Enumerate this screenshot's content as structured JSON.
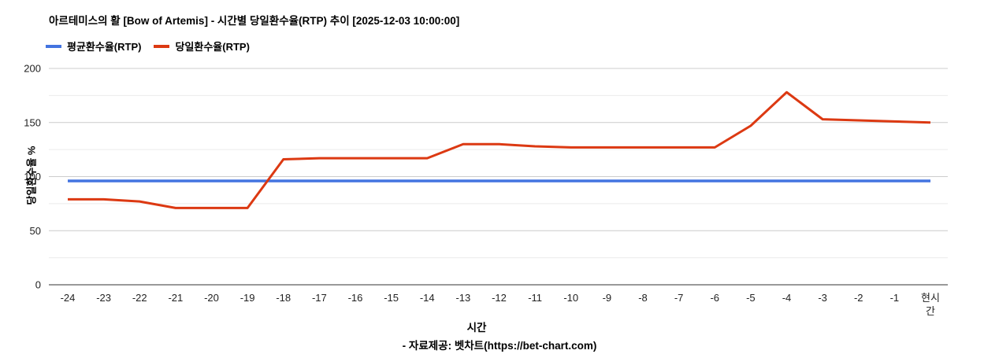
{
  "footer": {
    "source": "- 자료제공: 벳차트(https://bet-chart.com)"
  },
  "chart_data": {
    "type": "line",
    "title": "아르테미스의 활 [Bow of Artemis] - 시간별 당일환수율(RTP) 추이 [2025-12-03 10:00:00]",
    "x": [
      "-24",
      "-23",
      "-22",
      "-21",
      "-20",
      "-19",
      "-18",
      "-17",
      "-16",
      "-15",
      "-14",
      "-13",
      "-12",
      "-11",
      "-10",
      "-9",
      "-8",
      "-7",
      "-6",
      "-5",
      "-4",
      "-3",
      "-2",
      "-1",
      "현시간"
    ],
    "series": [
      {
        "name": "평균환수율(RTP)",
        "color": "#4374e0",
        "values": [
          96,
          96,
          96,
          96,
          96,
          96,
          96,
          96,
          96,
          96,
          96,
          96,
          96,
          96,
          96,
          96,
          96,
          96,
          96,
          96,
          96,
          96,
          96,
          96,
          96
        ]
      },
      {
        "name": "당일환수율(RTP)",
        "color": "#dc3912",
        "values": [
          79,
          79,
          77,
          71,
          71,
          71,
          116,
          117,
          117,
          117,
          117,
          130,
          130,
          128,
          127,
          127,
          127,
          127,
          127,
          147,
          178,
          153,
          152,
          151,
          150
        ]
      }
    ],
    "xlabel": "시간",
    "ylabel": "당일환수율 %",
    "ylim": [
      0,
      200
    ],
    "yticks": [
      0,
      50,
      100,
      150,
      200
    ],
    "minor_gridline_step": 25,
    "grid": true,
    "legend_position": "top-left",
    "gridline_color": "#cccccc",
    "minor_gridline_color": "#ebebeb",
    "axis_line_color": "#333333"
  }
}
